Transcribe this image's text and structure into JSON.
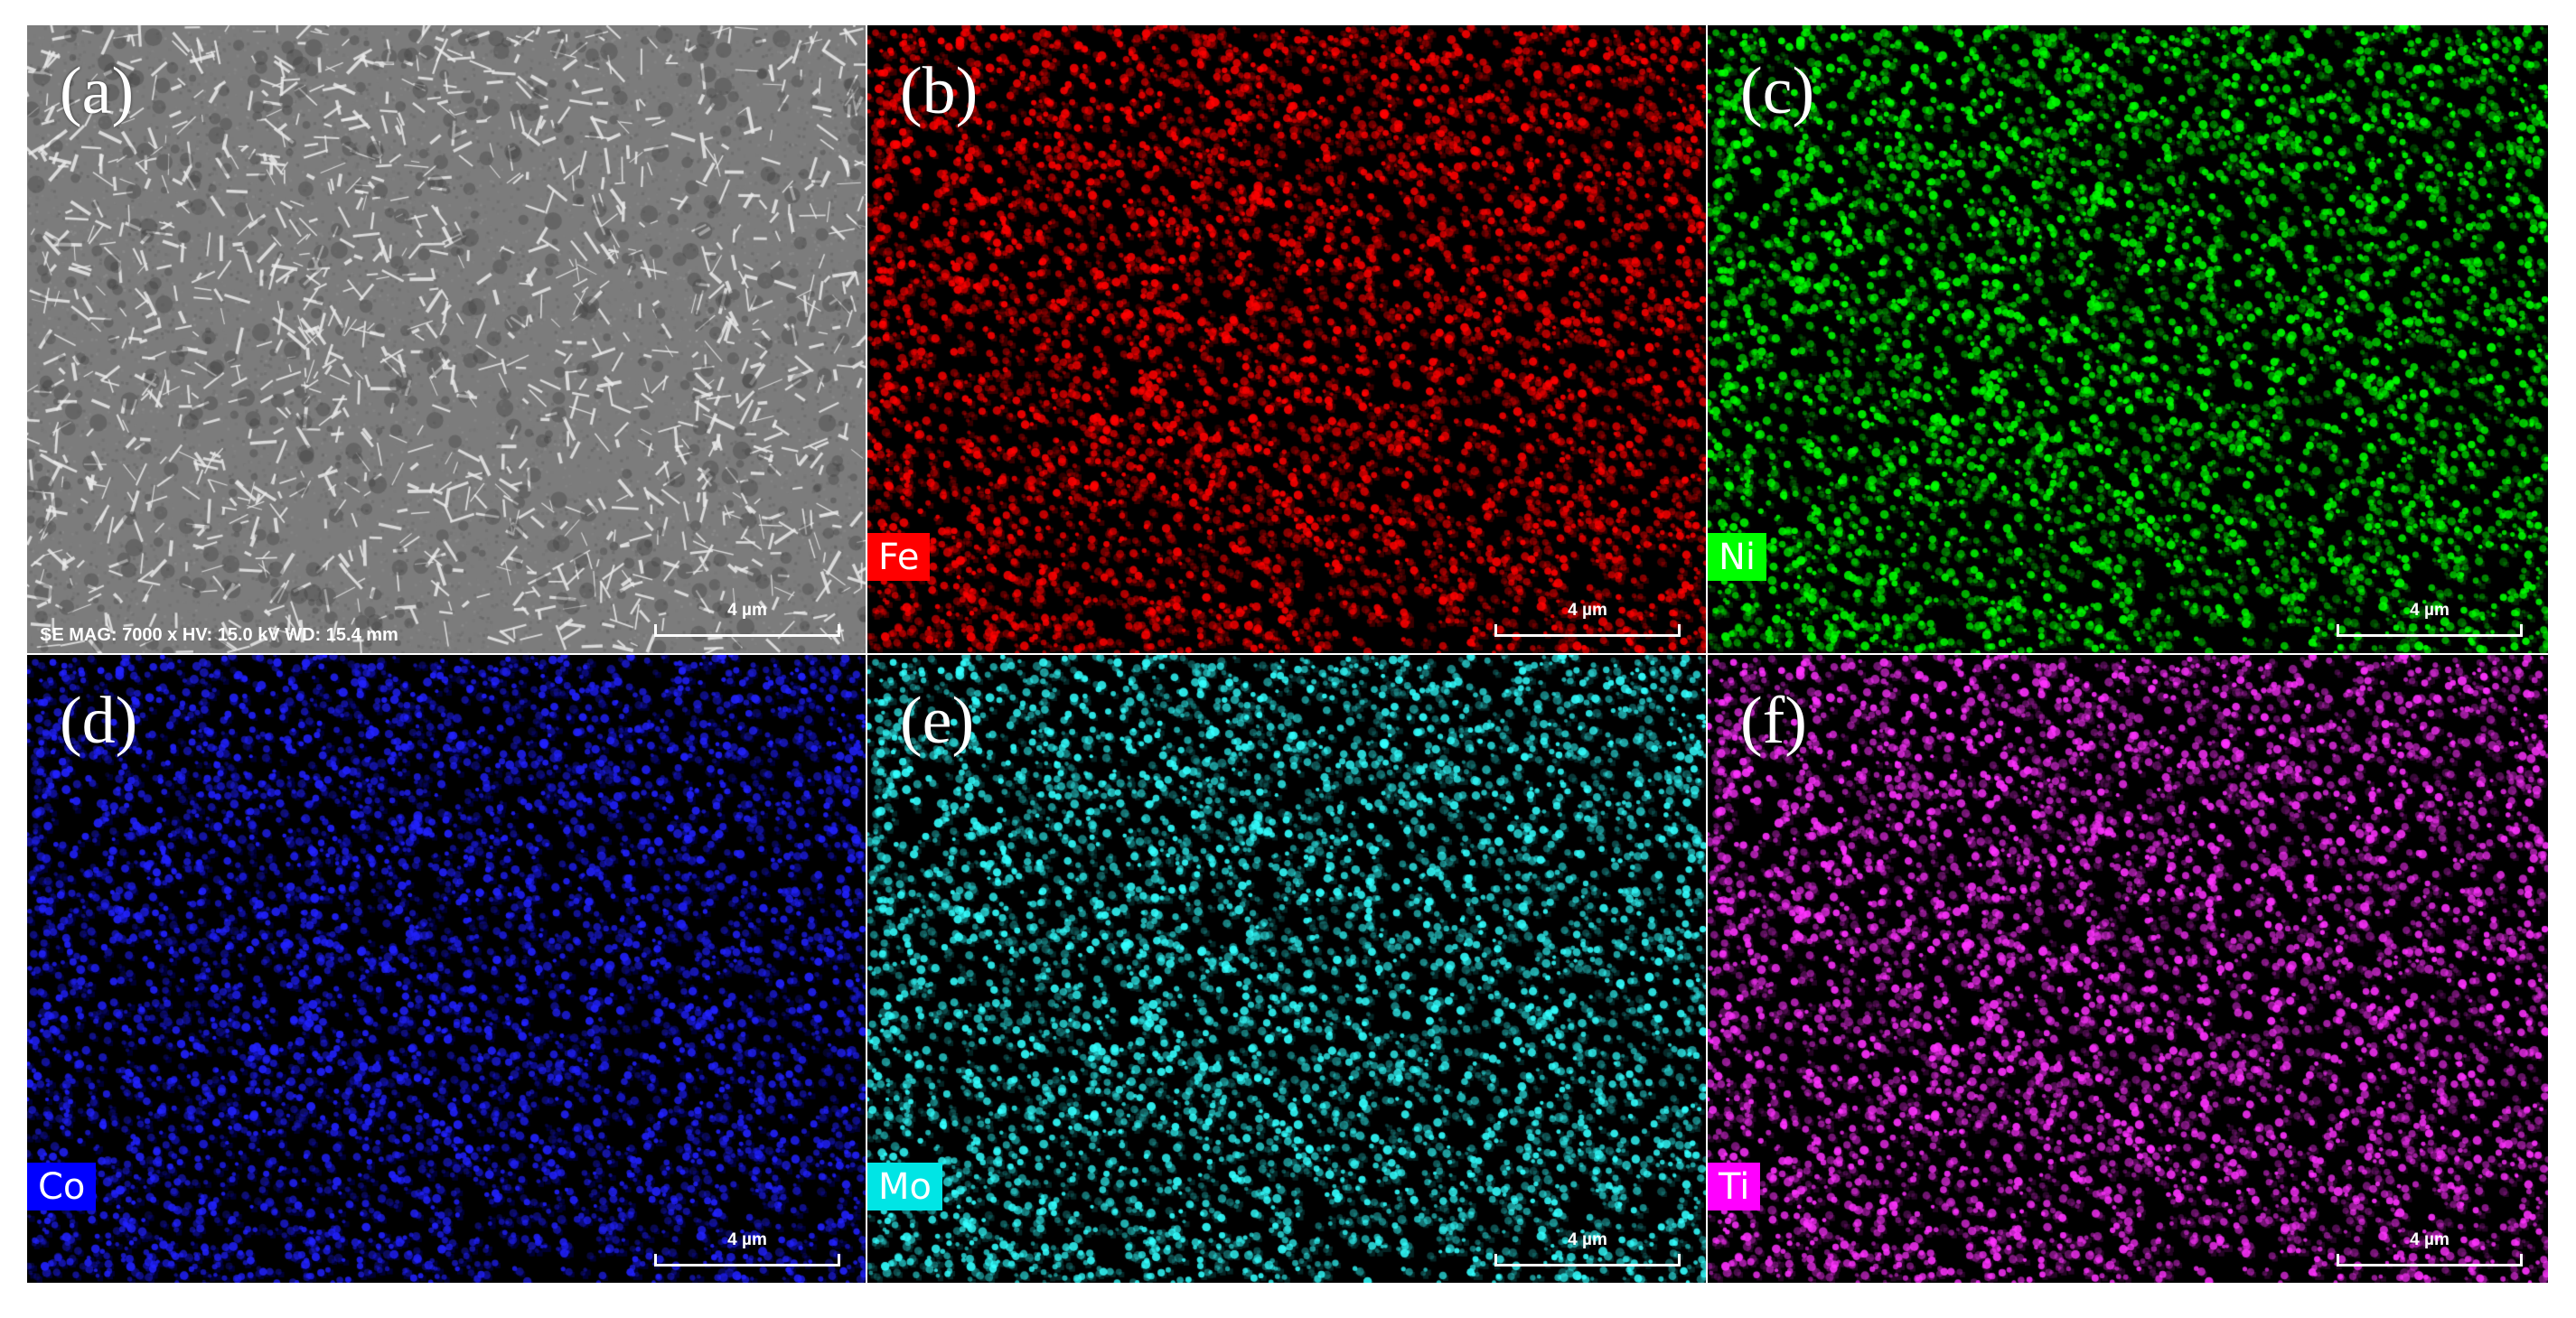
{
  "panels": [
    {
      "letter": "(a)",
      "element": "",
      "scale": "4 µm",
      "type": "sem",
      "base": "#7c7c7c",
      "color": "#ffffff",
      "info": "SE  MAG: 7000 x  HV: 15.0 kV  WD: 15.4 mm"
    },
    {
      "letter": "(b)",
      "element": "Fe",
      "scale": "4 µm",
      "type": "map",
      "base": "#3a0000",
      "color": "#ff0000",
      "label_bg": "#ff0000"
    },
    {
      "letter": "(c)",
      "element": "Ni",
      "scale": "4 µm",
      "type": "map",
      "base": "#062806",
      "color": "#00ff00",
      "label_bg": "#00ff00"
    },
    {
      "letter": "(d)",
      "element": "Co",
      "scale": "4 µm",
      "type": "map",
      "base": "#000033",
      "color": "#2222ff",
      "label_bg": "#0000ff"
    },
    {
      "letter": "(e)",
      "element": "Mo",
      "scale": "4 µm",
      "type": "map",
      "base": "#062626",
      "color": "#33ffff",
      "label_bg": "#00e5e5"
    },
    {
      "letter": "(f)",
      "element": "Ti",
      "scale": "4 µm",
      "type": "map",
      "base": "#260626",
      "color": "#ff33ff",
      "label_bg": "#ff00ff"
    }
  ]
}
